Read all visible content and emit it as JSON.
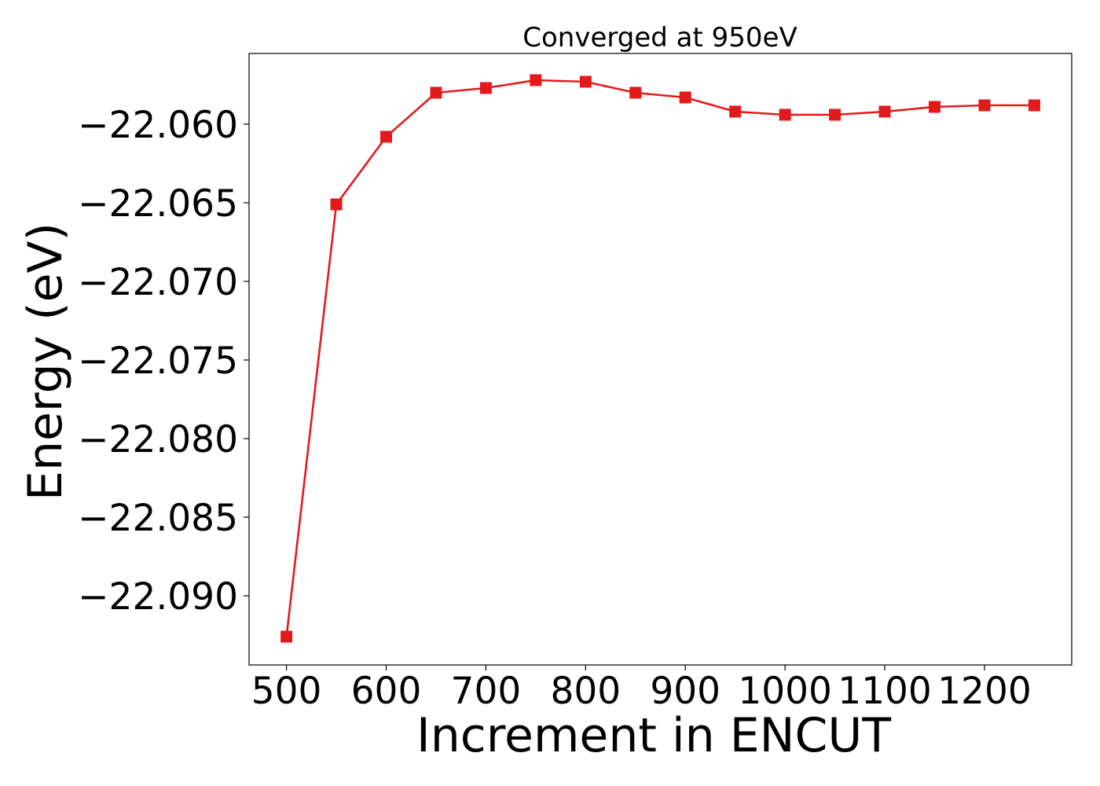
{
  "chart_data": {
    "type": "line",
    "title": "Converged at 950eV",
    "xlabel": "Increment in ENCUT",
    "ylabel": "Energy (eV)",
    "x": [
      500,
      550,
      600,
      650,
      700,
      750,
      800,
      850,
      900,
      950,
      1000,
      1050,
      1100,
      1150,
      1200,
      1250
    ],
    "series": [
      {
        "values": [
          -22.0926,
          -22.0651,
          -22.0608,
          -22.058,
          -22.0577,
          -22.0572,
          -22.0573,
          -22.058,
          -22.0583,
          -22.0592,
          -22.0594,
          -22.0594,
          -22.0592,
          -22.0589,
          -22.0588,
          -22.0588
        ],
        "color": "#e31a1c",
        "marker": "square"
      }
    ],
    "xticks": [
      500,
      600,
      700,
      800,
      900,
      1000,
      1100,
      1200
    ],
    "xtick_labels": [
      "500",
      "600",
      "700",
      "800",
      "900",
      "1000",
      "1100",
      "1200"
    ],
    "yticks": [
      -22.06,
      -22.065,
      -22.07,
      -22.075,
      -22.08,
      -22.085,
      -22.09
    ],
    "ytick_labels": [
      "−22.060",
      "−22.065",
      "−22.070",
      "−22.075",
      "−22.080",
      "−22.085",
      "−22.090"
    ],
    "xlim": [
      462.5,
      1287.5
    ],
    "ylim": [
      -22.0944,
      -22.0555
    ],
    "grid": false,
    "legend": "none"
  }
}
